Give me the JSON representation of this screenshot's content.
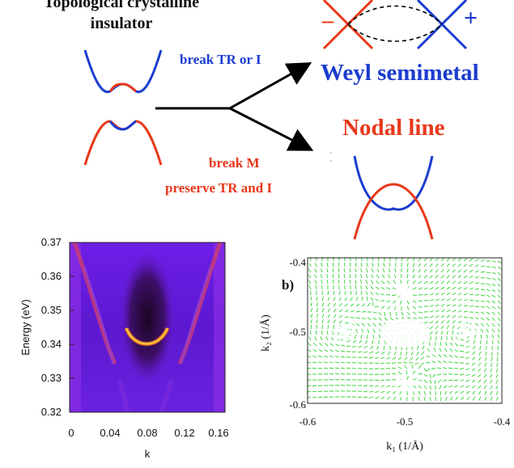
{
  "top": {
    "title_line1": "Topological crystalline",
    "title_line2": "insulator",
    "break_tr_label": "break TR or I",
    "weyl_label": "Weyl semimetal",
    "nodal_label": "Nodal line",
    "break_m_line1": "break M",
    "break_m_line2": "preserve TR and I",
    "minus_sign": "–",
    "plus_sign": "+",
    "colors": {
      "blue": "#1a3ccf",
      "red": "#e8381a"
    }
  },
  "chart_data": [
    {
      "type": "heatmap",
      "xlabel": "k",
      "ylabel": "Energy (eV)",
      "xlim": [
        0,
        0.16
      ],
      "ylim": [
        0.32,
        0.37
      ],
      "xticks": [
        "0",
        "0.04",
        "0.08",
        "0.12",
        "0.16"
      ],
      "yticks": [
        "0.37",
        "0.36",
        "0.35",
        "0.34",
        "0.33",
        "0.32"
      ]
    },
    {
      "type": "vector_field",
      "panel_label": "b)",
      "xlabel": "k₁ (1/Å)",
      "ylabel": "k₂ (1/Å)",
      "xlim": [
        -0.6,
        -0.4
      ],
      "ylim": [
        -0.6,
        -0.4
      ],
      "xticks": [
        "-0.6",
        "-0.5",
        "-0.4"
      ],
      "yticks": [
        "-0.4",
        "-0.5",
        "-0.6"
      ],
      "color": "#2fd12f"
    }
  ]
}
